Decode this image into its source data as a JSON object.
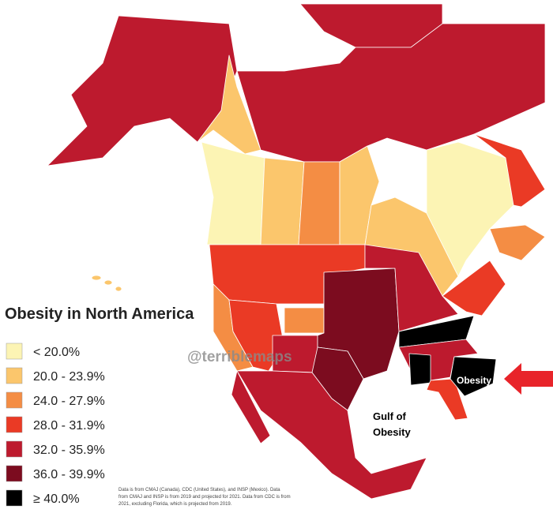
{
  "legend": {
    "title": "Obesity in North America",
    "items": [
      {
        "label": "< 20.0%",
        "color": "#fcf4b4"
      },
      {
        "label": "20.0 - 23.9%",
        "color": "#fbc66c"
      },
      {
        "label": "24.0 - 27.9%",
        "color": "#f48d44"
      },
      {
        "label": "28.0 - 31.9%",
        "color": "#ea3a25"
      },
      {
        "label": "32.0 - 35.9%",
        "color": "#bd1a2e"
      },
      {
        "label": "36.0 - 39.9%",
        "color": "#7c0c1f"
      },
      {
        "label": "≥ 40.0%",
        "color": "#000000"
      }
    ]
  },
  "watermark": "@terriblemaps",
  "annotations": {
    "obesity": "Obesity",
    "gulf": [
      "Gulf of",
      "Obesity"
    ]
  },
  "source": [
    "Data is from CMAJ (Canada), CDC (United States), and INSP (Mexico). Data",
    "from CMAJ and INSP is from 2019 and projected for 2021. Data from CDC is from",
    "2021, excluding Florida, which is projected from 2019."
  ]
}
